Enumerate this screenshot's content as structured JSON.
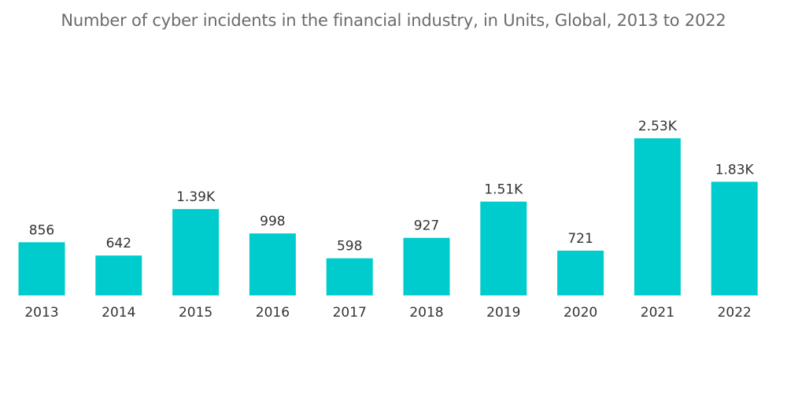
{
  "chart_data": {
    "type": "bar",
    "title": "Number of cyber incidents in the financial industry, in Units, Global, 2013 to 2022",
    "xlabel": "",
    "ylabel": "",
    "categories": [
      "2013",
      "2014",
      "2015",
      "2016",
      "2017",
      "2018",
      "2019",
      "2020",
      "2021",
      "2022"
    ],
    "values": [
      856,
      642,
      1390,
      998,
      598,
      927,
      1510,
      721,
      2530,
      1830
    ],
    "data_labels": [
      "856",
      "642",
      "1.39K",
      "998",
      "598",
      "927",
      "1.51K",
      "721",
      "2.53K",
      "1.83K"
    ],
    "ylim": [
      0,
      2530
    ],
    "grid": false,
    "legend": "none",
    "bar_color": "#00cccd"
  }
}
